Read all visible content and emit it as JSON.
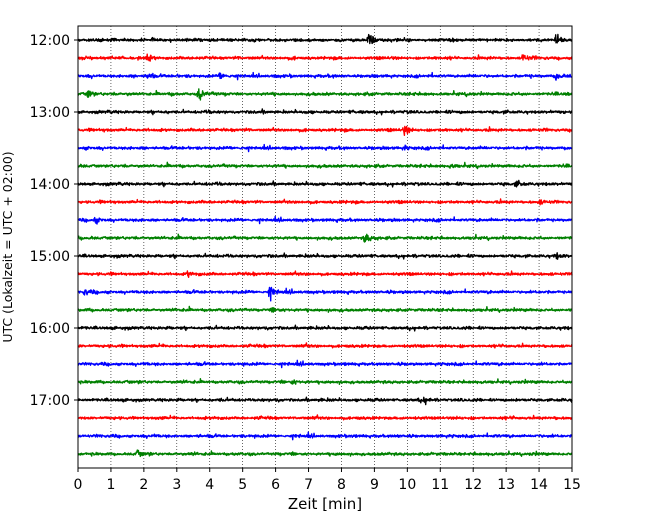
{
  "chart_data": {
    "type": "line",
    "title": "",
    "xlabel": "Zeit  [min]",
    "ylabel": "UTC (Lokalzeit = UTC + 02:00)",
    "xlim": [
      0,
      15
    ],
    "x_ticks": [
      "0",
      "1",
      "2",
      "3",
      "4",
      "5",
      "6",
      "7",
      "8",
      "9",
      "10",
      "11",
      "12",
      "13",
      "14",
      "15"
    ],
    "y_ticks": [
      "12:00",
      "13:00",
      "14:00",
      "15:00",
      "16:00",
      "17:00"
    ],
    "grid": "vertical dotted lines at each minute",
    "trace_interval_min": 15,
    "first_trace": "12:00",
    "trace_colors": [
      "#000000",
      "#ff0000",
      "#0000ff",
      "#008000"
    ],
    "traces": [
      {
        "start": "12:00",
        "color": "#000000",
        "events": [
          {
            "x": 8.8,
            "amp": 1.0
          },
          {
            "x": 14.5,
            "amp": 0.7
          }
        ]
      },
      {
        "start": "12:15",
        "color": "#ff0000",
        "events": [
          {
            "x": 13.5,
            "amp": 0.45
          },
          {
            "x": 2.1,
            "amp": 0.25
          }
        ]
      },
      {
        "start": "12:30",
        "color": "#0000ff",
        "events": [
          {
            "x": 2.1,
            "amp": 0.4
          },
          {
            "x": 4.3,
            "amp": 0.35
          },
          {
            "x": 14.5,
            "amp": 0.5
          }
        ]
      },
      {
        "start": "12:45",
        "color": "#008000",
        "events": [
          {
            "x": 0.3,
            "amp": 0.4
          },
          {
            "x": 3.65,
            "amp": 0.8
          }
        ]
      },
      {
        "start": "13:00",
        "color": "#000000",
        "events": []
      },
      {
        "start": "13:15",
        "color": "#ff0000",
        "events": [
          {
            "x": 9.9,
            "amp": 0.55
          }
        ]
      },
      {
        "start": "13:30",
        "color": "#0000ff",
        "events": [
          {
            "x": 9.9,
            "amp": 0.25
          }
        ]
      },
      {
        "start": "13:45",
        "color": "#008000",
        "events": [
          {
            "x": 11.3,
            "amp": 0.25
          }
        ]
      },
      {
        "start": "14:00",
        "color": "#000000",
        "events": [
          {
            "x": 13.3,
            "amp": 0.35
          }
        ]
      },
      {
        "start": "14:15",
        "color": "#ff0000",
        "events": [
          {
            "x": 14.0,
            "amp": 0.25
          }
        ]
      },
      {
        "start": "14:30",
        "color": "#0000ff",
        "events": [
          {
            "x": 0.5,
            "amp": 0.3
          }
        ]
      },
      {
        "start": "14:45",
        "color": "#008000",
        "events": [
          {
            "x": 8.7,
            "amp": 0.55
          }
        ]
      },
      {
        "start": "15:00",
        "color": "#000000",
        "events": [
          {
            "x": 14.5,
            "amp": 0.3
          }
        ]
      },
      {
        "start": "15:15",
        "color": "#ff0000",
        "events": [
          {
            "x": 3.3,
            "amp": 0.3
          },
          {
            "x": 15.0,
            "amp": 0.3
          }
        ]
      },
      {
        "start": "15:30",
        "color": "#0000ff",
        "events": [
          {
            "x": 0.2,
            "amp": 0.35
          },
          {
            "x": 5.8,
            "amp": 0.65
          }
        ]
      },
      {
        "start": "15:45",
        "color": "#008000",
        "events": [
          {
            "x": 5.9,
            "amp": 0.25
          }
        ]
      },
      {
        "start": "16:00",
        "color": "#000000",
        "events": []
      },
      {
        "start": "16:15",
        "color": "#ff0000",
        "events": []
      },
      {
        "start": "16:30",
        "color": "#0000ff",
        "events": []
      },
      {
        "start": "16:45",
        "color": "#008000",
        "events": [
          {
            "x": 6.5,
            "amp": 0.25
          }
        ]
      },
      {
        "start": "17:00",
        "color": "#000000",
        "events": [
          {
            "x": 10.5,
            "amp": 0.3
          }
        ]
      },
      {
        "start": "17:15",
        "color": "#ff0000",
        "events": []
      },
      {
        "start": "17:30",
        "color": "#0000ff",
        "events": []
      },
      {
        "start": "17:45",
        "color": "#008000",
        "events": [
          {
            "x": 1.8,
            "amp": 0.25
          }
        ]
      }
    ]
  }
}
